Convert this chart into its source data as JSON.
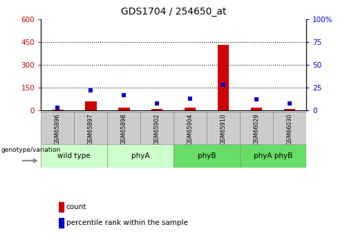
{
  "title": "GDS1704 / 254650_at",
  "samples": [
    "GSM65896",
    "GSM65897",
    "GSM65898",
    "GSM65902",
    "GSM65904",
    "GSM65910",
    "GSM66029",
    "GSM66030"
  ],
  "groups": [
    {
      "label": "wild type",
      "color": "#ccffcc",
      "start": 0,
      "end": 2
    },
    {
      "label": "phyA",
      "color": "#ccffcc",
      "start": 2,
      "end": 4
    },
    {
      "label": "phyB",
      "color": "#66dd66",
      "start": 4,
      "end": 6
    },
    {
      "label": "phyA phyB",
      "color": "#66dd66",
      "start": 6,
      "end": 8
    }
  ],
  "count_values": [
    8,
    60,
    20,
    12,
    18,
    430,
    18,
    12
  ],
  "percentile_values": [
    3,
    22,
    17,
    8,
    13,
    28,
    12,
    8
  ],
  "ylim_left": [
    0,
    600
  ],
  "ylim_right": [
    0,
    100
  ],
  "yticks_left": [
    0,
    150,
    300,
    450,
    600
  ],
  "yticks_right": [
    0,
    25,
    50,
    75,
    100
  ],
  "count_color": "#cc0000",
  "percentile_color": "#0000cc",
  "bar_bg_color": "#cccccc",
  "grid_color": "#000000",
  "title_fontsize": 10,
  "tick_fontsize": 7.5,
  "legend_label_count": "count",
  "legend_label_percentile": "percentile rank within the sample",
  "genotype_label": "genotype/variation"
}
